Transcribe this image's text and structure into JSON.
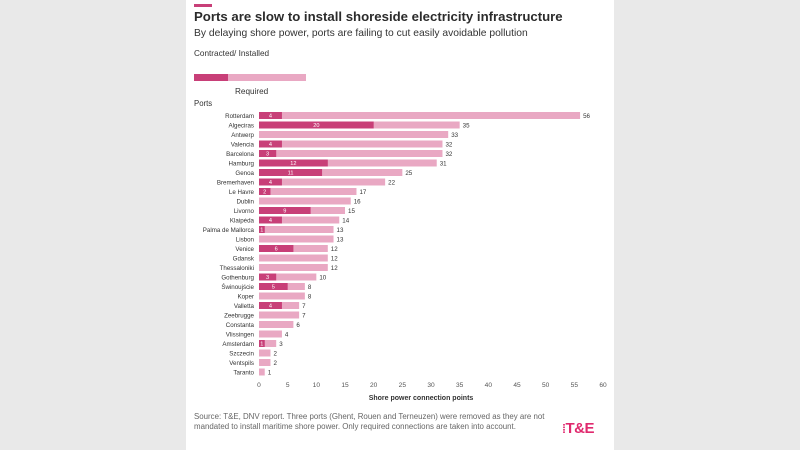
{
  "header": {
    "title": "Ports are slow to install shoreside electricity infrastructure",
    "subtitle": "By delaying shore power, ports are failing to cut easily avoidable pollution"
  },
  "legend": {
    "contracted_label": "Contracted/ Installed",
    "required_label": "Required"
  },
  "colors": {
    "contracted": "#c83f78",
    "required": "#e9a8c3",
    "accent": "#c83f78",
    "logo": "#e0296e"
  },
  "footer": {
    "source": "Source: T&E, DNV report. Three ports (Ghent, Rouen and Terneuzen) were removed as they are not mandated to install maritime shore power. Only required connections are taken into account.",
    "logo_text": "T&E"
  },
  "chart_data": {
    "type": "bar",
    "orientation": "horizontal",
    "ylabel": "Ports",
    "xlabel": "Shore power connection points",
    "xlim": [
      0,
      60
    ],
    "xticks": [
      0,
      5,
      10,
      15,
      20,
      25,
      30,
      35,
      40,
      45,
      50,
      55,
      60
    ],
    "grid": false,
    "categories": [
      "Rotterdam",
      "Algeciras",
      "Antwerp",
      "Valencia",
      "Barcelona",
      "Hamburg",
      "Genoa",
      "Bremerhaven",
      "Le Havre",
      "Dublin",
      "Livorno",
      "Klaipėda",
      "Palma de Mallorca",
      "Lisbon",
      "Venice",
      "Gdansk",
      "Thessaloniki",
      "Gothenburg",
      "Świnoujście",
      "Koper",
      "Valletta",
      "Zeebrugge",
      "Constanta",
      "Vlissingen",
      "Amsterdam",
      "Szczecin",
      "Ventspils",
      "Taranto"
    ],
    "series": [
      {
        "name": "Contracted/ Installed",
        "values": [
          4,
          20,
          0,
          4,
          3,
          12,
          11,
          4,
          2,
          0,
          9,
          4,
          1,
          0,
          6,
          0,
          0,
          3,
          5,
          0,
          4,
          0,
          0,
          0,
          1,
          0,
          0,
          0
        ]
      },
      {
        "name": "Required",
        "values": [
          56,
          35,
          33,
          32,
          32,
          31,
          25,
          22,
          17,
          16,
          15,
          14,
          13,
          13,
          12,
          12,
          12,
          10,
          8,
          8,
          7,
          7,
          6,
          4,
          3,
          2,
          2,
          1
        ]
      }
    ]
  }
}
